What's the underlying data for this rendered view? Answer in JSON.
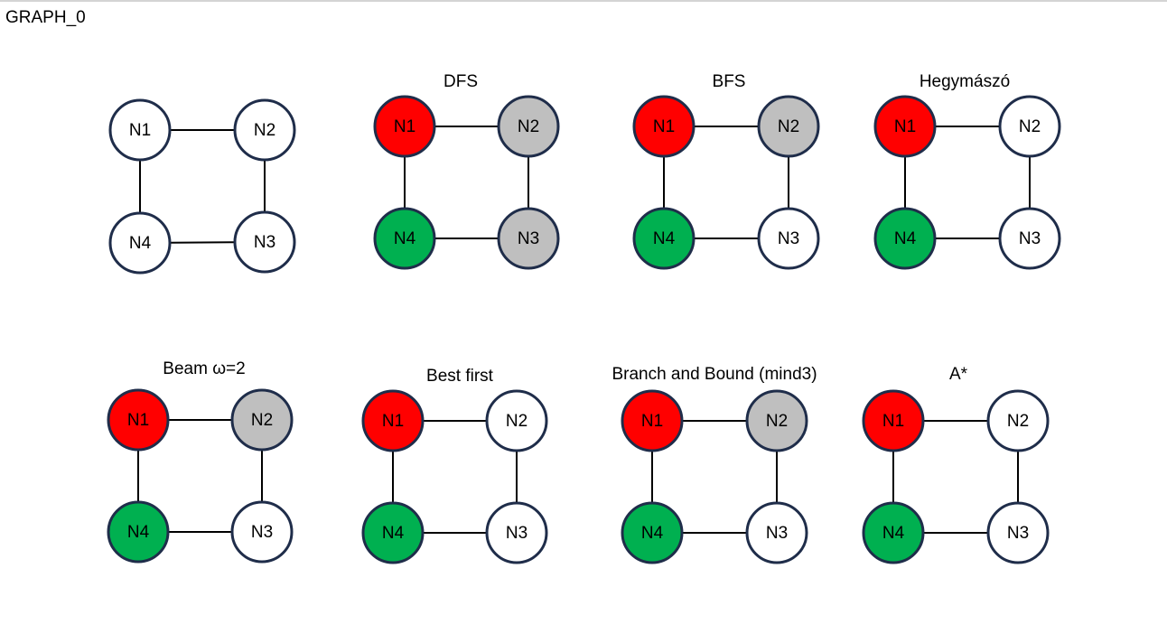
{
  "page": {
    "title": "GRAPH_0"
  },
  "colors": {
    "start": "#ff0000",
    "goal": "#00b050",
    "visited": "#bfbfbf",
    "unvisited": "#ffffff",
    "outline": "#1f2d4a"
  },
  "edges": [
    [
      "N1",
      "N2"
    ],
    [
      "N2",
      "N3"
    ],
    [
      "N3",
      "N4"
    ],
    [
      "N4",
      "N1"
    ]
  ],
  "panels": [
    {
      "title": "",
      "nodes": {
        "N1": "unvisited",
        "N2": "unvisited",
        "N3": "unvisited",
        "N4": "unvisited"
      }
    },
    {
      "title": "DFS",
      "nodes": {
        "N1": "start",
        "N2": "visited",
        "N3": "visited",
        "N4": "goal"
      }
    },
    {
      "title": "BFS",
      "nodes": {
        "N1": "start",
        "N2": "visited",
        "N3": "unvisited",
        "N4": "goal"
      }
    },
    {
      "title": "Hegymászó",
      "nodes": {
        "N1": "start",
        "N2": "unvisited",
        "N3": "unvisited",
        "N4": "goal"
      }
    },
    {
      "title": "Beam ω=2",
      "nodes": {
        "N1": "start",
        "N2": "visited",
        "N3": "unvisited",
        "N4": "goal"
      }
    },
    {
      "title": "Best first",
      "nodes": {
        "N1": "start",
        "N2": "unvisited",
        "N3": "unvisited",
        "N4": "goal"
      }
    },
    {
      "title": "Branch and Bound (mind3)",
      "nodes": {
        "N1": "start",
        "N2": "visited",
        "N3": "unvisited",
        "N4": "goal"
      }
    },
    {
      "title": "A*",
      "nodes": {
        "N1": "start",
        "N2": "unvisited",
        "N3": "unvisited",
        "N4": "goal"
      }
    }
  ]
}
